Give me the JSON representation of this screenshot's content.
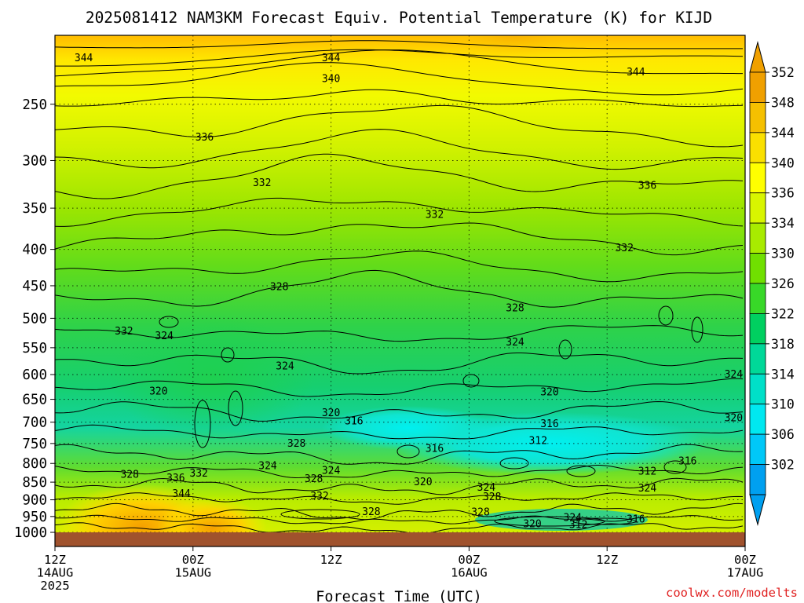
{
  "chart_data": {
    "type": "heatmap",
    "title": "2025081412 NAM3KM Forecast Equiv. Potential Temperature (K) for KIJD",
    "xlabel": "Forecast Time (UTC)",
    "ylabel": "",
    "x_ticks": [
      {
        "value": 0,
        "line1": "12Z",
        "line2": "14AUG",
        "line3": "2025"
      },
      {
        "value": 12,
        "line1": "00Z",
        "line2": "15AUG",
        "line3": ""
      },
      {
        "value": 24,
        "line1": "12Z",
        "line2": "",
        "line3": ""
      },
      {
        "value": 36,
        "line1": "00Z",
        "line2": "16AUG",
        "line3": ""
      },
      {
        "value": 48,
        "line1": "12Z",
        "line2": "",
        "line3": ""
      },
      {
        "value": 60,
        "line1": "00Z",
        "line2": "17AUG",
        "line3": ""
      }
    ],
    "xlim": [
      0,
      60
    ],
    "y_ticks": [
      250,
      300,
      350,
      400,
      450,
      500,
      550,
      600,
      650,
      700,
      750,
      800,
      850,
      900,
      950,
      1000
    ],
    "ylim": [
      1000,
      200
    ],
    "y_scale": "log",
    "grid": true,
    "colorbar": {
      "labels": [
        352,
        348,
        344,
        340,
        336,
        334,
        330,
        326,
        322,
        318,
        314,
        310,
        306,
        302
      ],
      "colors": [
        "#f0a000",
        "#f5c000",
        "#fae000",
        "#ffff00",
        "#d8f500",
        "#a8eb00",
        "#70e000",
        "#38d828",
        "#00d060",
        "#00d898",
        "#00e0c8",
        "#00e8f0",
        "#00c8f8",
        "#00a0f0"
      ]
    },
    "contour_labels": [
      {
        "value": "344",
        "x": 2.5,
        "p": 215
      },
      {
        "value": "344",
        "x": 24,
        "p": 215
      },
      {
        "value": "344",
        "x": 50.5,
        "p": 225
      },
      {
        "value": "340",
        "x": 24,
        "p": 230
      },
      {
        "value": "336",
        "x": 13,
        "p": 278
      },
      {
        "value": "336",
        "x": 51.5,
        "p": 325
      },
      {
        "value": "332",
        "x": 18,
        "p": 322
      },
      {
        "value": "332",
        "x": 33,
        "p": 357
      },
      {
        "value": "332",
        "x": 49.5,
        "p": 398
      },
      {
        "value": "332",
        "x": 6,
        "p": 521
      },
      {
        "value": "328",
        "x": 19.5,
        "p": 451
      },
      {
        "value": "328",
        "x": 40,
        "p": 483
      },
      {
        "value": "324",
        "x": 9.5,
        "p": 529
      },
      {
        "value": "324",
        "x": 40,
        "p": 540
      },
      {
        "value": "324",
        "x": 20,
        "p": 583
      },
      {
        "value": "324",
        "x": 59,
        "p": 599
      },
      {
        "value": "320",
        "x": 9,
        "p": 633
      },
      {
        "value": "320",
        "x": 24,
        "p": 679
      },
      {
        "value": "320",
        "x": 43,
        "p": 634
      },
      {
        "value": "320",
        "x": 59,
        "p": 690
      },
      {
        "value": "316",
        "x": 26,
        "p": 697
      },
      {
        "value": "316",
        "x": 43,
        "p": 703
      },
      {
        "value": "316",
        "x": 33,
        "p": 762
      },
      {
        "value": "316",
        "x": 55,
        "p": 793
      },
      {
        "value": "312",
        "x": 42,
        "p": 743
      },
      {
        "value": "312",
        "x": 51.5,
        "p": 820
      },
      {
        "value": "328",
        "x": 21,
        "p": 749
      },
      {
        "value": "328",
        "x": 6.5,
        "p": 829
      },
      {
        "value": "336",
        "x": 10.5,
        "p": 838
      },
      {
        "value": "332",
        "x": 12.5,
        "p": 825
      },
      {
        "value": "344",
        "x": 11,
        "p": 882
      },
      {
        "value": "324",
        "x": 18.5,
        "p": 806
      },
      {
        "value": "324",
        "x": 24,
        "p": 818
      },
      {
        "value": "328",
        "x": 22.5,
        "p": 840
      },
      {
        "value": "320",
        "x": 32,
        "p": 849
      },
      {
        "value": "324",
        "x": 37.5,
        "p": 864
      },
      {
        "value": "328",
        "x": 38,
        "p": 891
      },
      {
        "value": "324",
        "x": 51.5,
        "p": 866
      },
      {
        "value": "332",
        "x": 23,
        "p": 888
      },
      {
        "value": "328",
        "x": 27.5,
        "p": 935
      },
      {
        "value": "328",
        "x": 37,
        "p": 936
      },
      {
        "value": "320",
        "x": 41.5,
        "p": 973
      },
      {
        "value": "324",
        "x": 45,
        "p": 953
      },
      {
        "value": "312",
        "x": 45.5,
        "p": 975
      },
      {
        "value": "316",
        "x": 50.5,
        "p": 958
      }
    ]
  },
  "credit": "coolwx.com/modelts"
}
